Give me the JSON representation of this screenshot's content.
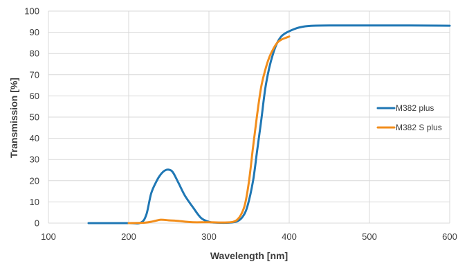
{
  "chart_data": {
    "type": "line",
    "title": "",
    "xlabel": "Wavelength [nm]",
    "ylabel": "Transmission [%]",
    "xlim": [
      100,
      600
    ],
    "ylim": [
      0,
      100
    ],
    "xticks": [
      "100",
      "200",
      "300",
      "400",
      "500",
      "600"
    ],
    "yticks": [
      "0",
      "10",
      "20",
      "30",
      "40",
      "50",
      "60",
      "70",
      "80",
      "90",
      "100"
    ],
    "grid": {
      "x": true,
      "y": true
    },
    "legend_position": "right",
    "series": [
      {
        "name": "M382 plus",
        "color": "#1f77b4",
        "points": [
          [
            150,
            0
          ],
          [
            200,
            0
          ],
          [
            215,
            0.2
          ],
          [
            222,
            4
          ],
          [
            228,
            14
          ],
          [
            235,
            20
          ],
          [
            240,
            23
          ],
          [
            245,
            24.8
          ],
          [
            250,
            25.2
          ],
          [
            255,
            24
          ],
          [
            262,
            19
          ],
          [
            270,
            13
          ],
          [
            280,
            7.5
          ],
          [
            290,
            2.5
          ],
          [
            300,
            0.6
          ],
          [
            310,
            0.2
          ],
          [
            325,
            0.2
          ],
          [
            335,
            0.8
          ],
          [
            342,
            3
          ],
          [
            348,
            8
          ],
          [
            355,
            20
          ],
          [
            360,
            34
          ],
          [
            365,
            48
          ],
          [
            370,
            63
          ],
          [
            375,
            73
          ],
          [
            380,
            80
          ],
          [
            385,
            85
          ],
          [
            390,
            88
          ],
          [
            395,
            89.5
          ],
          [
            400,
            90.5
          ],
          [
            410,
            92
          ],
          [
            420,
            92.8
          ],
          [
            430,
            93.1
          ],
          [
            450,
            93.2
          ],
          [
            500,
            93.2
          ],
          [
            550,
            93.2
          ],
          [
            600,
            93.1
          ]
        ]
      },
      {
        "name": "M382 S plus",
        "color": "#f28e1c",
        "points": [
          [
            200,
            0
          ],
          [
            220,
            0.2
          ],
          [
            230,
            0.8
          ],
          [
            240,
            1.6
          ],
          [
            250,
            1.3
          ],
          [
            260,
            1.1
          ],
          [
            270,
            0.7
          ],
          [
            280,
            0.4
          ],
          [
            300,
            0.4
          ],
          [
            320,
            0.3
          ],
          [
            330,
            0.6
          ],
          [
            335,
            1.5
          ],
          [
            340,
            4
          ],
          [
            345,
            9
          ],
          [
            350,
            20
          ],
          [
            355,
            36
          ],
          [
            360,
            51
          ],
          [
            365,
            64
          ],
          [
            370,
            72
          ],
          [
            375,
            78
          ],
          [
            380,
            82
          ],
          [
            385,
            85
          ],
          [
            390,
            86.5
          ],
          [
            395,
            87.3
          ],
          [
            400,
            88
          ]
        ]
      }
    ]
  }
}
